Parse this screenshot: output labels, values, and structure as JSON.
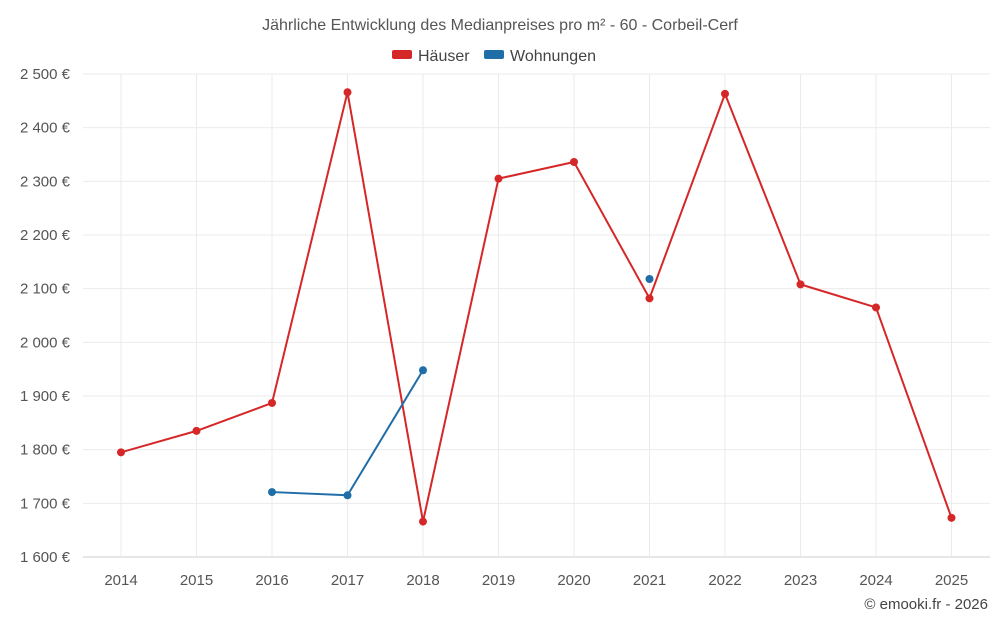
{
  "chart_data": {
    "type": "line",
    "title": "Jährliche Entwicklung des Medianpreises pro m² - 60 - Corbeil-Cerf",
    "categories": [
      "2014",
      "2015",
      "2016",
      "2017",
      "2018",
      "2019",
      "2020",
      "2021",
      "2022",
      "2023",
      "2024",
      "2025"
    ],
    "ylim": [
      1600,
      2500
    ],
    "yticks": [
      1600,
      1700,
      1800,
      1900,
      2000,
      2100,
      2200,
      2300,
      2400,
      2500
    ],
    "ytick_labels": [
      "1 600 €",
      "1 700 €",
      "1 800 €",
      "1 900 €",
      "2 000 €",
      "2 100 €",
      "2 200 €",
      "2 300 €",
      "2 400 €",
      "2 500 €"
    ],
    "grid": true,
    "legend_position": "top-center",
    "series": [
      {
        "name": "Häuser",
        "color": "#d62728",
        "values": [
          1795,
          1835,
          1887,
          2466,
          1666,
          2305,
          2336,
          2082,
          2463,
          2108,
          2065,
          1673
        ]
      },
      {
        "name": "Wohnungen",
        "color": "#1f6ea8",
        "values": [
          null,
          null,
          1721,
          1715,
          1948,
          null,
          null,
          2118,
          null,
          null,
          null,
          null
        ]
      }
    ],
    "footer": "© emooki.fr - 2026"
  }
}
